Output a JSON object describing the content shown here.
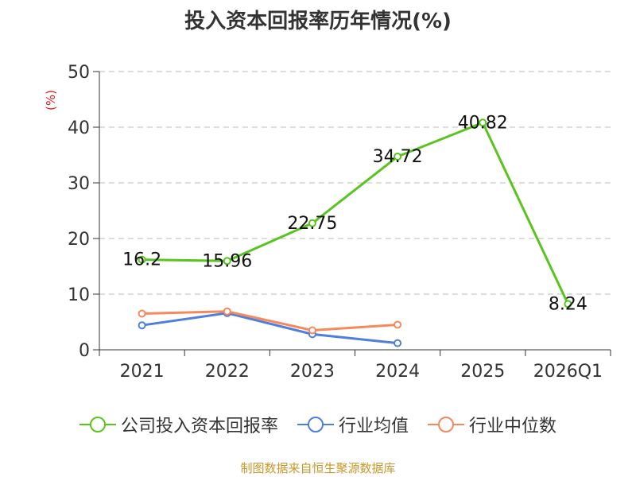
{
  "header": {
    "title": "投入资本回报率历年情况(%)"
  },
  "footer": {
    "source": "制图数据来自恒生聚源数据库"
  },
  "chart_data": {
    "type": "line",
    "title": "投入资本回报率历年情况(%)",
    "xlabel": "",
    "ylabel": "(%)",
    "categories": [
      "2021",
      "2022",
      "2023",
      "2024",
      "2025",
      "2026Q1"
    ],
    "ylim": [
      0,
      50
    ],
    "yticks": [
      0,
      10,
      20,
      30,
      40,
      50
    ],
    "grid": true,
    "legend_position": "bottom",
    "series": [
      {
        "name": "公司投入资本回报率",
        "color": "#5ac41f",
        "values": [
          16.2,
          15.96,
          22.75,
          34.72,
          40.82,
          8.24
        ],
        "labels": [
          "16.2",
          "15.96",
          "22.75",
          "34.72",
          "40.82",
          "8.24"
        ]
      },
      {
        "name": "行业均值",
        "color": "#4f7fdb",
        "values": [
          4.4,
          6.6,
          2.8,
          1.2,
          null,
          null
        ]
      },
      {
        "name": "行业中位数",
        "color": "#f5895c",
        "values": [
          6.5,
          6.9,
          3.5,
          4.5,
          null,
          null
        ]
      }
    ]
  }
}
